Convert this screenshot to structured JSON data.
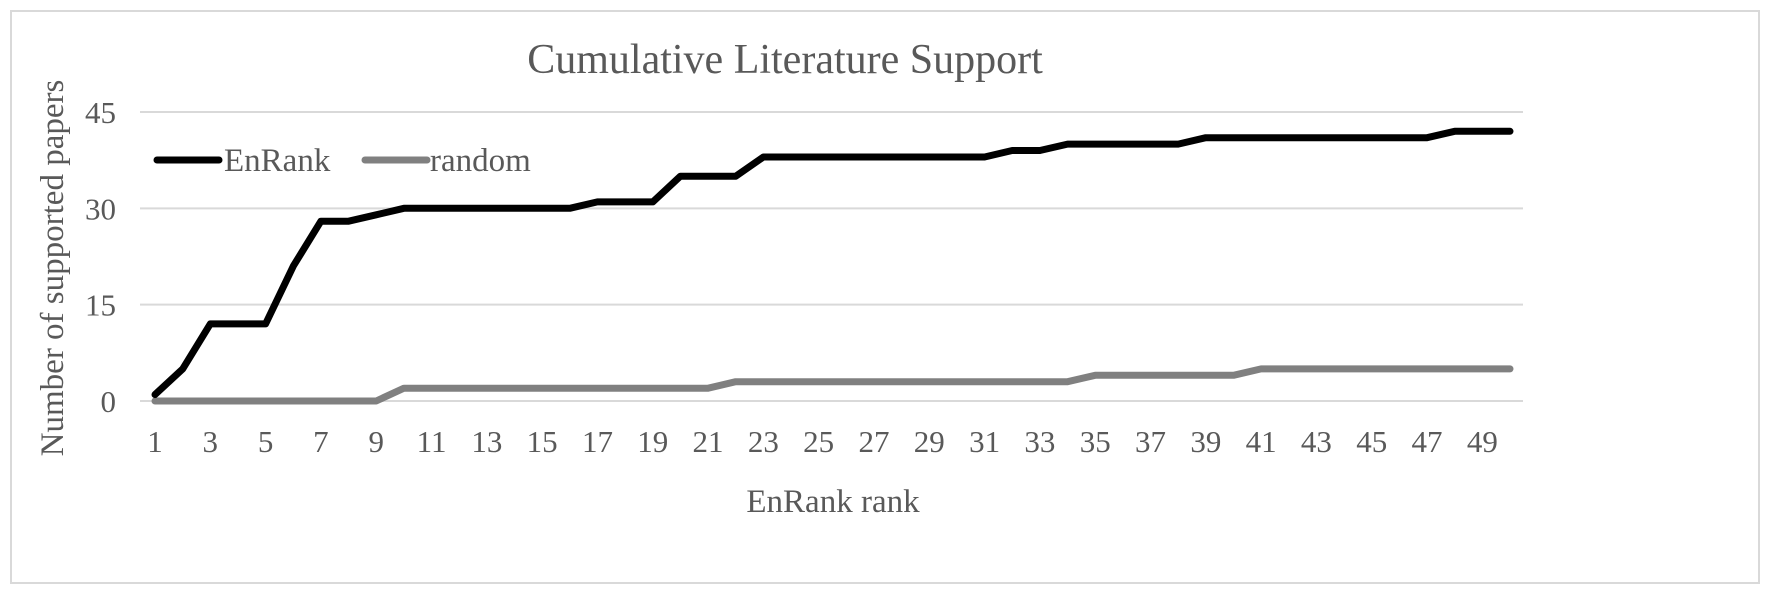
{
  "chart_data": {
    "type": "line",
    "title": "Cumulative Literature Support",
    "xlabel": "EnRank rank",
    "ylabel": "Number of supported papers",
    "x": [
      1,
      2,
      3,
      4,
      5,
      6,
      7,
      8,
      9,
      10,
      11,
      12,
      13,
      14,
      15,
      16,
      17,
      18,
      19,
      20,
      21,
      22,
      23,
      24,
      25,
      26,
      27,
      28,
      29,
      30,
      31,
      32,
      33,
      34,
      35,
      36,
      37,
      38,
      39,
      40,
      41,
      42,
      43,
      44,
      45,
      46,
      47,
      48,
      49,
      50
    ],
    "x_tick_labels": [
      "1",
      "3",
      "5",
      "7",
      "9",
      "11",
      "13",
      "15",
      "17",
      "19",
      "21",
      "23",
      "25",
      "27",
      "29",
      "31",
      "33",
      "35",
      "37",
      "39",
      "41",
      "43",
      "45",
      "47",
      "49"
    ],
    "y_tick_labels": [
      "0",
      "15",
      "30",
      "45"
    ],
    "ylim": [
      0,
      45
    ],
    "grid": "horizontal",
    "legend_position": "top-left",
    "series": [
      {
        "name": "EnRank",
        "color": "#000000",
        "values": [
          1,
          5,
          12,
          12,
          12,
          21,
          28,
          28,
          29,
          30,
          30,
          30,
          30,
          30,
          30,
          30,
          31,
          31,
          31,
          35,
          35,
          35,
          38,
          38,
          38,
          38,
          38,
          38,
          38,
          38,
          38,
          39,
          39,
          40,
          40,
          40,
          40,
          40,
          41,
          41,
          41,
          41,
          41,
          41,
          41,
          41,
          41,
          42,
          42,
          42
        ]
      },
      {
        "name": "random",
        "color": "#808080",
        "values": [
          0,
          0,
          0,
          0,
          0,
          0,
          0,
          0,
          0,
          2,
          2,
          2,
          2,
          2,
          2,
          2,
          2,
          2,
          2,
          2,
          2,
          3,
          3,
          3,
          3,
          3,
          3,
          3,
          3,
          3,
          3,
          3,
          3,
          3,
          4,
          4,
          4,
          4,
          4,
          4,
          5,
          5,
          5,
          5,
          5,
          5,
          5,
          5,
          5,
          5
        ]
      }
    ]
  }
}
